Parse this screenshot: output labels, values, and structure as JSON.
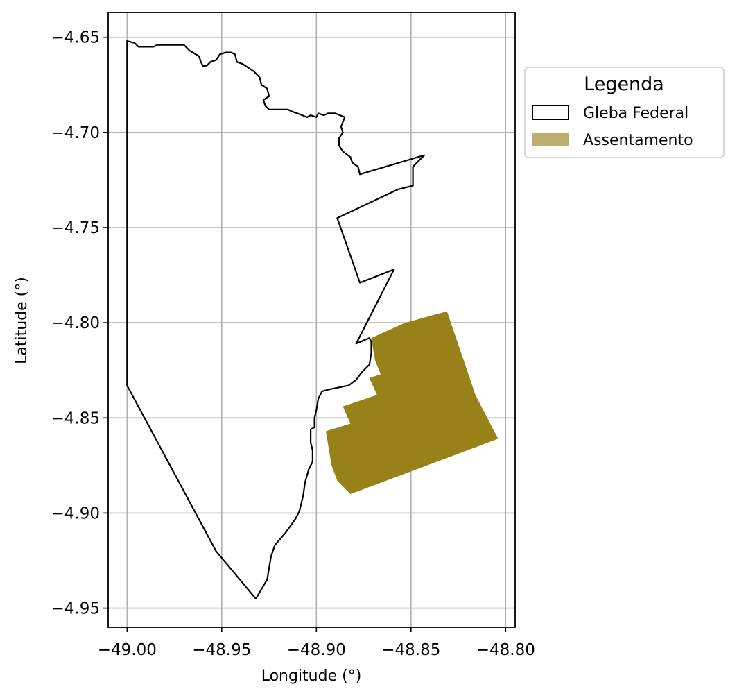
{
  "chart_data": {
    "type": "map",
    "title": "",
    "xlabel": "Longitude (°)",
    "ylabel": "Latitude (°)",
    "xlim": [
      -49.01,
      -48.795
    ],
    "ylim": [
      -4.96,
      -4.637
    ],
    "grid": true,
    "x_ticks": [
      -49.0,
      -48.95,
      -48.9,
      -48.85,
      -48.8
    ],
    "x_tick_labels": [
      "−49.00",
      "−48.95",
      "−48.90",
      "−48.85",
      "−48.80"
    ],
    "y_ticks": [
      -4.65,
      -4.7,
      -4.75,
      -4.8,
      -4.85,
      -4.9,
      -4.95
    ],
    "y_tick_labels": [
      "−4.65",
      "−4.70",
      "−4.75",
      "−4.80",
      "−4.85",
      "−4.90",
      "−4.95"
    ],
    "legend": {
      "title": "Legenda",
      "position": "outside-right-top",
      "entries": [
        {
          "label": "Gleba Federal",
          "style": "outline",
          "color": "#000000"
        },
        {
          "label": "Assentamento",
          "style": "fill",
          "color": "#bdb06e"
        }
      ]
    },
    "layers": [
      {
        "name": "Gleba Federal",
        "style": "outline",
        "stroke": "#000000",
        "coordinates": [
          [
            -49.0,
            -4.652
          ],
          [
            -48.996,
            -4.653
          ],
          [
            -48.994,
            -4.655
          ],
          [
            -48.992,
            -4.655
          ],
          [
            -48.986,
            -4.655
          ],
          [
            -48.984,
            -4.654
          ],
          [
            -48.97,
            -4.654
          ],
          [
            -48.967,
            -4.657
          ],
          [
            -48.962,
            -4.66
          ],
          [
            -48.961,
            -4.663
          ],
          [
            -48.96,
            -4.665
          ],
          [
            -48.958,
            -4.665
          ],
          [
            -48.956,
            -4.663
          ],
          [
            -48.953,
            -4.662
          ],
          [
            -48.951,
            -4.659
          ],
          [
            -48.948,
            -4.658
          ],
          [
            -48.945,
            -4.658
          ],
          [
            -48.943,
            -4.659
          ],
          [
            -48.942,
            -4.663
          ],
          [
            -48.939,
            -4.664
          ],
          [
            -48.933,
            -4.668
          ],
          [
            -48.93,
            -4.671
          ],
          [
            -48.929,
            -4.675
          ],
          [
            -48.926,
            -4.677
          ],
          [
            -48.925,
            -4.681
          ],
          [
            -48.928,
            -4.683
          ],
          [
            -48.927,
            -4.686
          ],
          [
            -48.925,
            -4.688
          ],
          [
            -48.922,
            -4.688
          ],
          [
            -48.918,
            -4.688
          ],
          [
            -48.915,
            -4.688
          ],
          [
            -48.913,
            -4.689
          ],
          [
            -48.91,
            -4.69
          ],
          [
            -48.905,
            -4.692
          ],
          [
            -48.903,
            -4.691
          ],
          [
            -48.9,
            -4.692
          ],
          [
            -48.899,
            -4.69
          ],
          [
            -48.896,
            -4.691
          ],
          [
            -48.894,
            -4.69
          ],
          [
            -48.89,
            -4.69
          ],
          [
            -48.885,
            -4.692
          ],
          [
            -48.887,
            -4.697
          ],
          [
            -48.886,
            -4.7
          ],
          [
            -48.888,
            -4.703
          ],
          [
            -48.888,
            -4.707
          ],
          [
            -48.886,
            -4.71
          ],
          [
            -48.882,
            -4.713
          ],
          [
            -48.881,
            -4.716
          ],
          [
            -48.878,
            -4.718
          ],
          [
            -48.877,
            -4.722
          ],
          [
            -48.843,
            -4.712
          ],
          [
            -48.849,
            -4.718
          ],
          [
            -48.849,
            -4.728
          ],
          [
            -48.857,
            -4.73
          ],
          [
            -48.889,
            -4.745
          ],
          [
            -48.877,
            -4.779
          ],
          [
            -48.859,
            -4.772
          ],
          [
            -48.879,
            -4.811
          ],
          [
            -48.872,
            -4.808
          ],
          [
            -48.871,
            -4.81
          ],
          [
            -48.871,
            -4.816
          ],
          [
            -48.872,
            -4.822
          ],
          [
            -48.876,
            -4.826
          ],
          [
            -48.879,
            -4.83
          ],
          [
            -48.883,
            -4.833
          ],
          [
            -48.893,
            -4.835
          ],
          [
            -48.897,
            -4.836
          ],
          [
            -48.898,
            -4.838
          ],
          [
            -48.899,
            -4.84
          ],
          [
            -48.9,
            -4.846
          ],
          [
            -48.901,
            -4.85
          ],
          [
            -48.901,
            -4.855
          ],
          [
            -48.903,
            -4.856
          ],
          [
            -48.903,
            -4.863
          ],
          [
            -48.902,
            -4.867
          ],
          [
            -48.902,
            -4.873
          ],
          [
            -48.904,
            -4.877
          ],
          [
            -48.906,
            -4.884
          ],
          [
            -48.907,
            -4.891
          ],
          [
            -48.909,
            -4.899
          ],
          [
            -48.911,
            -4.903
          ],
          [
            -48.916,
            -4.91
          ],
          [
            -48.922,
            -4.917
          ],
          [
            -48.924,
            -4.923
          ],
          [
            -48.926,
            -4.935
          ],
          [
            -48.932,
            -4.945
          ],
          [
            -48.953,
            -4.92
          ],
          [
            -49.0,
            -4.833
          ],
          [
            -49.0,
            -4.652
          ]
        ]
      },
      {
        "name": "Assentamento",
        "style": "fill",
        "fill": "#988119",
        "coordinates": [
          [
            -48.871,
            -4.808
          ],
          [
            -48.853,
            -4.8
          ],
          [
            -48.831,
            -4.794
          ],
          [
            -48.82,
            -4.826
          ],
          [
            -48.816,
            -4.838
          ],
          [
            -48.804,
            -4.861
          ],
          [
            -48.882,
            -4.89
          ],
          [
            -48.889,
            -4.883
          ],
          [
            -48.892,
            -4.875
          ],
          [
            -48.895,
            -4.857
          ],
          [
            -48.882,
            -4.853
          ],
          [
            -48.886,
            -4.844
          ],
          [
            -48.868,
            -4.838
          ],
          [
            -48.872,
            -4.829
          ],
          [
            -48.866,
            -4.827
          ],
          [
            -48.869,
            -4.82
          ],
          [
            -48.871,
            -4.808
          ]
        ]
      }
    ]
  }
}
